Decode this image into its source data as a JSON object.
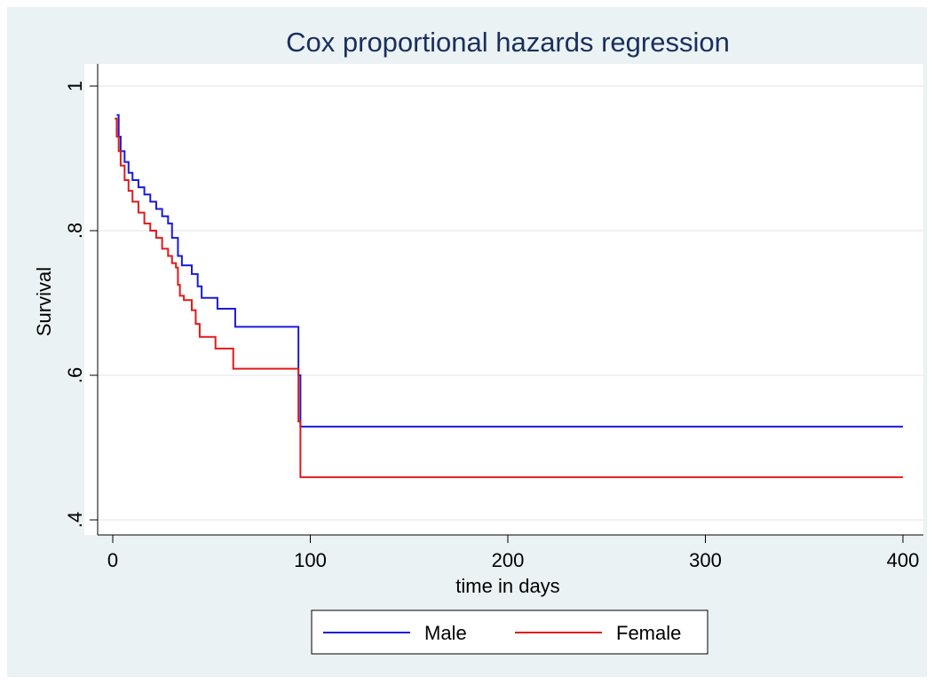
{
  "chart_data": {
    "type": "step",
    "title": "Cox proportional hazards regression",
    "x_label": "time in days",
    "y_label": "Survival",
    "xlim": [
      0,
      400
    ],
    "xticks": [
      0,
      100,
      200,
      300,
      400
    ],
    "ylim": [
      0.4,
      1
    ],
    "yticks": [
      {
        "value": 0.4,
        "label": ".4"
      },
      {
        "value": 0.6,
        "label": ".6"
      },
      {
        "value": 0.8,
        "label": ".8"
      },
      {
        "value": 1,
        "label": "1"
      }
    ],
    "grid": true,
    "legend": "bottom",
    "series": [
      {
        "name": "Male",
        "color": "#1a1adc",
        "x": [
          2,
          3,
          4,
          6,
          8,
          10,
          13,
          16,
          19,
          22,
          25,
          28,
          30,
          33,
          35,
          40,
          43,
          45,
          53,
          62,
          94,
          95,
          400
        ],
        "values": [
          0.96,
          0.93,
          0.91,
          0.895,
          0.88,
          0.87,
          0.86,
          0.85,
          0.84,
          0.83,
          0.82,
          0.81,
          0.79,
          0.765,
          0.752,
          0.74,
          0.723,
          0.707,
          0.692,
          0.667,
          0.6,
          0.529,
          0.529
        ]
      },
      {
        "name": "Female",
        "color": "#e01a1a",
        "x": [
          1,
          2,
          3,
          4,
          6,
          8,
          10,
          13,
          16,
          19,
          22,
          25,
          28,
          30,
          32,
          33,
          34,
          36,
          40,
          42,
          44,
          52,
          61,
          94,
          95,
          400
        ],
        "values": [
          0.955,
          0.93,
          0.91,
          0.89,
          0.87,
          0.855,
          0.84,
          0.825,
          0.81,
          0.8,
          0.79,
          0.775,
          0.765,
          0.755,
          0.749,
          0.725,
          0.71,
          0.704,
          0.69,
          0.671,
          0.653,
          0.637,
          0.609,
          0.536,
          0.459,
          0.459
        ]
      }
    ]
  }
}
